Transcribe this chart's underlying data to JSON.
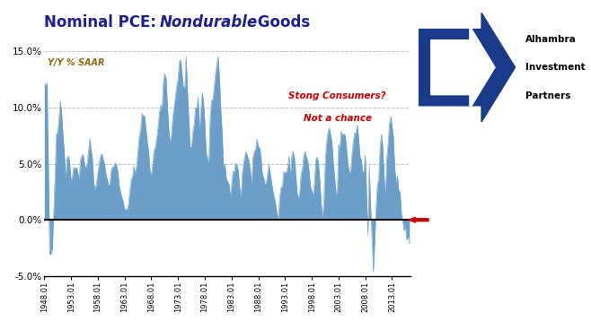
{
  "title_plain1": "Nominal PCE: ",
  "title_italic": "Nondurable",
  "title_plain2": " Goods",
  "title_color": "#1F1F8F",
  "subtitle": "Y/Y % SAAR",
  "subtitle_color": "#8B6A14",
  "annotation_line1": "Stong Consumers?",
  "annotation_line2": "Not a chance",
  "annotation_color": "#CC0000",
  "fill_color": "#6B9FCA",
  "zero_line_color": "black",
  "grid_color": "#B0B0B0",
  "background_color": "white",
  "ylim_min": -5.0,
  "ylim_max": 15.0,
  "yticks": [
    -5.0,
    0.0,
    5.0,
    10.0,
    15.0
  ],
  "ytick_labels": [
    "-5.0%",
    "0.0%",
    "5.0%",
    "10.0%",
    "15.0%"
  ],
  "arrow_color": "#CC0000",
  "figwidth": 6.58,
  "figheight": 3.58,
  "dpi": 100
}
